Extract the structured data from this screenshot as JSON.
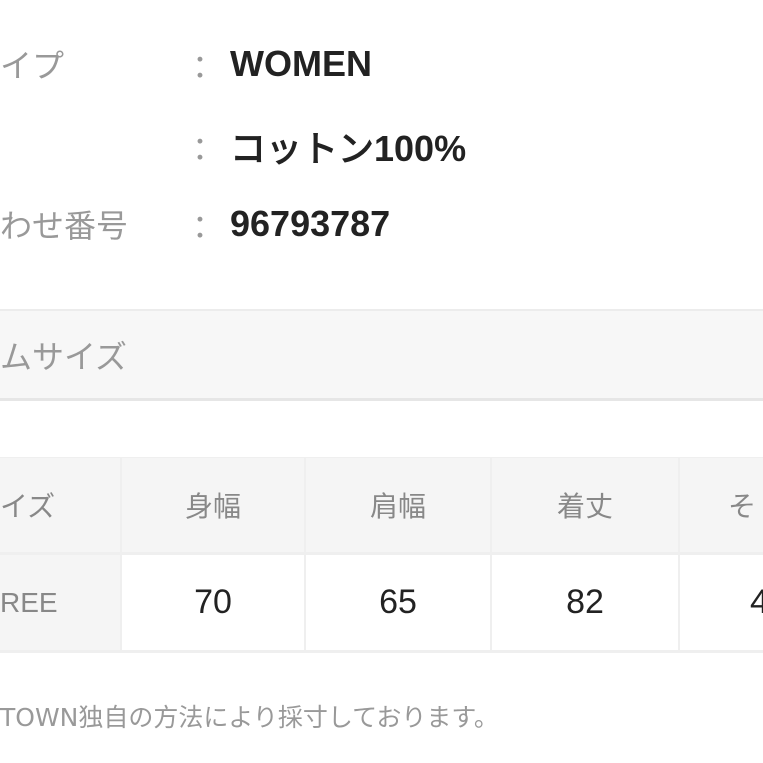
{
  "details": [
    {
      "label": "イプ",
      "value": "WOMEN"
    },
    {
      "label": "",
      "value": "コットン100%"
    },
    {
      "label": "わせ番号",
      "value": "96793787"
    }
  ],
  "colon": "：",
  "section_title": "ムサイズ",
  "size_table": {
    "headers": [
      "イズ",
      "身幅",
      "肩幅",
      "着丈",
      "そ"
    ],
    "rows": [
      [
        "REE",
        "70",
        "65",
        "82",
        "4"
      ]
    ]
  },
  "footnote": "TOWN独自の方法により採寸しております。"
}
